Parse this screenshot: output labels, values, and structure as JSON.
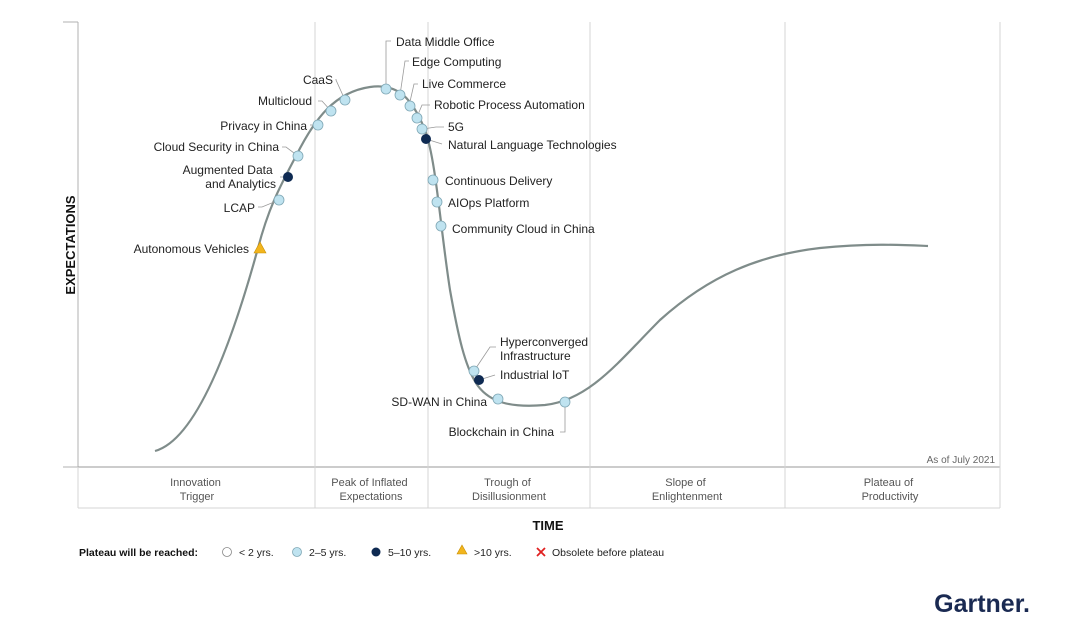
{
  "axes": {
    "y_title": "EXPECTATIONS",
    "x_title": "TIME"
  },
  "as_of": "As of July 2021",
  "phases": [
    {
      "line1": "Innovation",
      "line2": "Trigger"
    },
    {
      "line1": "Peak of Inflated",
      "line2": "Expectations"
    },
    {
      "line1": "Trough of",
      "line2": "Disillusionment"
    },
    {
      "line1": "Slope of",
      "line2": "Enlightenment"
    },
    {
      "line1": "Plateau of",
      "line2": "Productivity"
    }
  ],
  "technologies": [
    {
      "label": [
        "Autonomous Vehicles"
      ],
      "plateau": ">10 yrs."
    },
    {
      "label": [
        "LCAP"
      ],
      "plateau": "2-5 yrs."
    },
    {
      "label": [
        "Augmented Data",
        "and Analytics"
      ],
      "plateau": "5-10 yrs."
    },
    {
      "label": [
        "Cloud Security in China"
      ],
      "plateau": "2-5 yrs."
    },
    {
      "label": [
        "Privacy in China"
      ],
      "plateau": "2-5 yrs."
    },
    {
      "label": [
        "Multicloud"
      ],
      "plateau": "2-5 yrs."
    },
    {
      "label": [
        "CaaS"
      ],
      "plateau": "2-5 yrs."
    },
    {
      "label": [
        "Data Middle Office"
      ],
      "plateau": "2-5 yrs."
    },
    {
      "label": [
        "Edge Computing"
      ],
      "plateau": "2-5 yrs."
    },
    {
      "label": [
        "Live Commerce"
      ],
      "plateau": "2-5 yrs."
    },
    {
      "label": [
        "Robotic Process Automation"
      ],
      "plateau": "2-5 yrs."
    },
    {
      "label": [
        "5G"
      ],
      "plateau": "2-5 yrs."
    },
    {
      "label": [
        "Natural Language Technologies"
      ],
      "plateau": "5-10 yrs."
    },
    {
      "label": [
        "Continuous Delivery"
      ],
      "plateau": "2-5 yrs."
    },
    {
      "label": [
        "AIOps Platform"
      ],
      "plateau": "2-5 yrs."
    },
    {
      "label": [
        "Community Cloud in China"
      ],
      "plateau": "2-5 yrs."
    },
    {
      "label": [
        "Hyperconverged",
        "Infrastructure"
      ],
      "plateau": "2-5 yrs."
    },
    {
      "label": [
        "Industrial IoT"
      ],
      "plateau": "5-10 yrs."
    },
    {
      "label": [
        "SD-WAN in China"
      ],
      "plateau": "2-5 yrs."
    },
    {
      "label": [
        "Blockchain in China"
      ],
      "plateau": "2-5 yrs."
    }
  ],
  "legend": {
    "title": "Plateau will be reached:",
    "items": [
      {
        "key": "<2",
        "text": "< 2 yrs."
      },
      {
        "key": "2-5",
        "text": "2–5 yrs."
      },
      {
        "key": "5-10",
        "text": "5–10 yrs."
      },
      {
        "key": ">10",
        "text": ">10 yrs."
      },
      {
        "key": "obsolete",
        "text": "Obsolete before plateau"
      }
    ]
  },
  "colors": {
    "curve": "#7f8c8a",
    "two_to_five": "#bfe3f0",
    "five_to_ten": "#0e2a52",
    "over_ten": "#f2b51d",
    "obsolete": "#e02020",
    "grid": "#d4d4d4"
  },
  "logo": "Gartner."
}
